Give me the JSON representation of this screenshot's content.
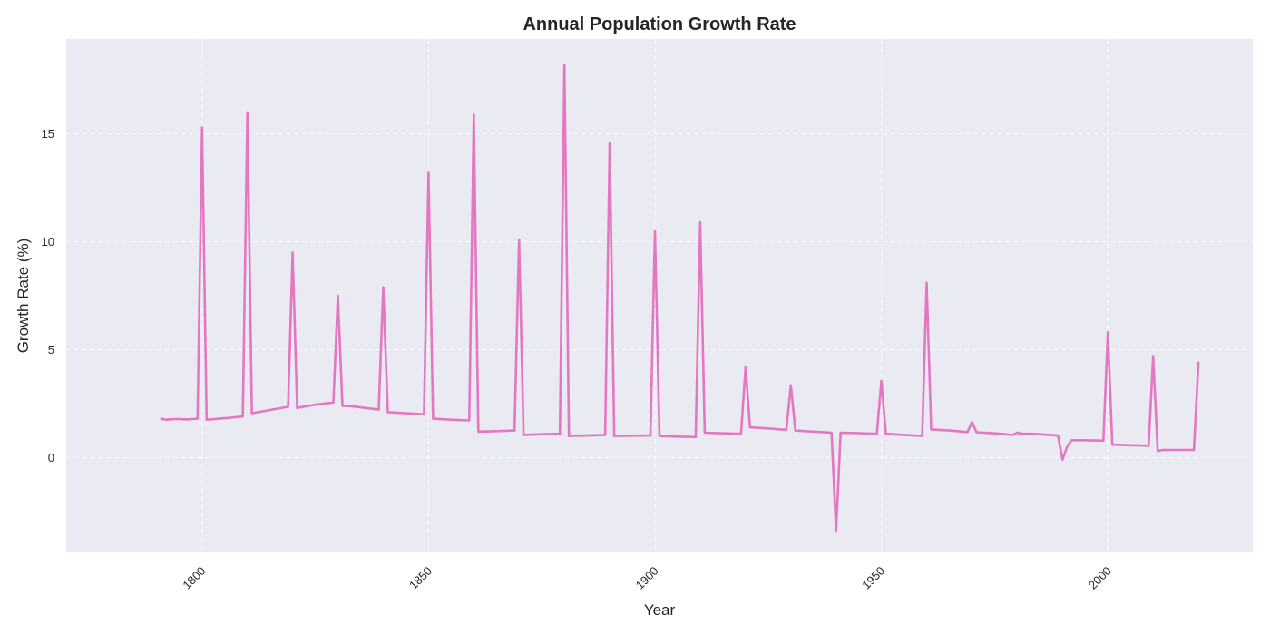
{
  "chart_data": {
    "type": "line",
    "title": "Annual Population Growth Rate",
    "xlabel": "Year",
    "ylabel": "Growth Rate (%)",
    "xlim": [
      1770,
      2032
    ],
    "ylim": [
      -4.4,
      19.4
    ],
    "xticks": [
      1800,
      1850,
      1900,
      1950,
      2000
    ],
    "yticks": [
      0,
      5,
      10,
      15
    ],
    "grid": true,
    "legend": "none",
    "series": [
      {
        "color": "#e377c2",
        "points": [
          [
            1791,
            1.8
          ],
          [
            1792,
            1.75
          ],
          [
            1793,
            1.77
          ],
          [
            1794,
            1.78
          ],
          [
            1795,
            1.78
          ],
          [
            1796,
            1.77
          ],
          [
            1797,
            1.77
          ],
          [
            1798,
            1.78
          ],
          [
            1799,
            1.8
          ],
          [
            1800,
            15.3
          ],
          [
            1801,
            1.75
          ],
          [
            1802,
            1.77
          ],
          [
            1805,
            1.82
          ],
          [
            1809,
            1.9
          ],
          [
            1810,
            16.0
          ],
          [
            1811,
            2.05
          ],
          [
            1815,
            2.2
          ],
          [
            1819,
            2.35
          ],
          [
            1820,
            9.5
          ],
          [
            1821,
            2.3
          ],
          [
            1825,
            2.45
          ],
          [
            1829,
            2.55
          ],
          [
            1830,
            7.5
          ],
          [
            1831,
            2.4
          ],
          [
            1833,
            2.38
          ],
          [
            1839,
            2.22
          ],
          [
            1840,
            7.9
          ],
          [
            1841,
            2.1
          ],
          [
            1845,
            2.05
          ],
          [
            1849,
            2.0
          ],
          [
            1850,
            13.2
          ],
          [
            1851,
            1.8
          ],
          [
            1855,
            1.75
          ],
          [
            1859,
            1.72
          ],
          [
            1860,
            15.9
          ],
          [
            1861,
            1.2
          ],
          [
            1865,
            1.22
          ],
          [
            1869,
            1.25
          ],
          [
            1870,
            10.1
          ],
          [
            1871,
            1.05
          ],
          [
            1875,
            1.08
          ],
          [
            1879,
            1.1
          ],
          [
            1880,
            18.2
          ],
          [
            1881,
            1.0
          ],
          [
            1885,
            1.02
          ],
          [
            1889,
            1.04
          ],
          [
            1890,
            14.6
          ],
          [
            1891,
            1.0
          ],
          [
            1895,
            1.01
          ],
          [
            1899,
            1.02
          ],
          [
            1900,
            10.5
          ],
          [
            1901,
            1.0
          ],
          [
            1905,
            0.97
          ],
          [
            1909,
            0.95
          ],
          [
            1910,
            10.9
          ],
          [
            1911,
            1.15
          ],
          [
            1915,
            1.12
          ],
          [
            1919,
            1.1
          ],
          [
            1920,
            4.2
          ],
          [
            1921,
            1.4
          ],
          [
            1925,
            1.35
          ],
          [
            1929,
            1.28
          ],
          [
            1930,
            3.35
          ],
          [
            1931,
            1.25
          ],
          [
            1935,
            1.2
          ],
          [
            1939,
            1.15
          ],
          [
            1940,
            -3.4
          ],
          [
            1941,
            1.15
          ],
          [
            1945,
            1.13
          ],
          [
            1949,
            1.1
          ],
          [
            1950,
            3.55
          ],
          [
            1951,
            1.1
          ],
          [
            1955,
            1.05
          ],
          [
            1959,
            1.0
          ],
          [
            1960,
            8.1
          ],
          [
            1961,
            1.3
          ],
          [
            1965,
            1.25
          ],
          [
            1969,
            1.18
          ],
          [
            1970,
            1.65
          ],
          [
            1971,
            1.17
          ],
          [
            1975,
            1.12
          ],
          [
            1979,
            1.05
          ],
          [
            1980,
            1.15
          ],
          [
            1981,
            1.1
          ],
          [
            1983,
            1.1
          ],
          [
            1985,
            1.08
          ],
          [
            1989,
            1.02
          ],
          [
            1990,
            -0.1
          ],
          [
            1991,
            0.5
          ],
          [
            1992,
            0.8
          ],
          [
            1995,
            0.8
          ],
          [
            1999,
            0.78
          ],
          [
            2000,
            5.8
          ],
          [
            2001,
            0.6
          ],
          [
            2005,
            0.57
          ],
          [
            2009,
            0.55
          ],
          [
            2010,
            4.7
          ],
          [
            2011,
            0.3
          ],
          [
            2012,
            0.35
          ],
          [
            2015,
            0.35
          ],
          [
            2019,
            0.35
          ],
          [
            2020,
            4.4
          ]
        ]
      }
    ]
  }
}
